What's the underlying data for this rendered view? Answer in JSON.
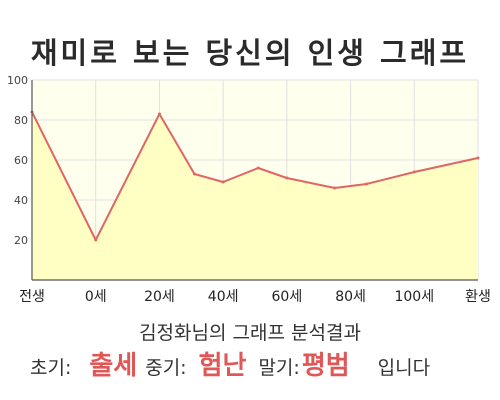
{
  "page": {
    "title": "재미로 보는 당신의 인생 그래프",
    "subtitle": "김정화님의 그래프 분석결과"
  },
  "result": {
    "early_label": "초기:",
    "early_value": "출세",
    "middle_label": "중기:",
    "middle_value": "험난",
    "late_label": "말기:",
    "late_value": "평범",
    "suffix": "입니다"
  },
  "chart_data": {
    "type": "area",
    "x_labels": [
      "전생",
      "0세",
      "20세",
      "40세",
      "60세",
      "80세",
      "100세",
      "환생"
    ],
    "x": [
      -20,
      0,
      20,
      40,
      60,
      80,
      100,
      120
    ],
    "y_ticks": [
      20,
      40,
      60,
      80,
      100
    ],
    "ylim": [
      0,
      100
    ],
    "xlim": [
      -20,
      120
    ],
    "grid": true,
    "series": [
      {
        "x": [
          -20,
          0,
          20,
          31,
          40,
          51,
          60,
          75,
          85,
          100,
          120
        ],
        "values": [
          84,
          20,
          83,
          53,
          49,
          56,
          51,
          46,
          48,
          54,
          61
        ]
      }
    ],
    "colors": {
      "line": "#e06666",
      "fill": "#ffffc4",
      "plot_bg": "#ffffee",
      "grid": "#e0e0e0",
      "axis": "#555555",
      "highlight": "#e05757"
    }
  }
}
